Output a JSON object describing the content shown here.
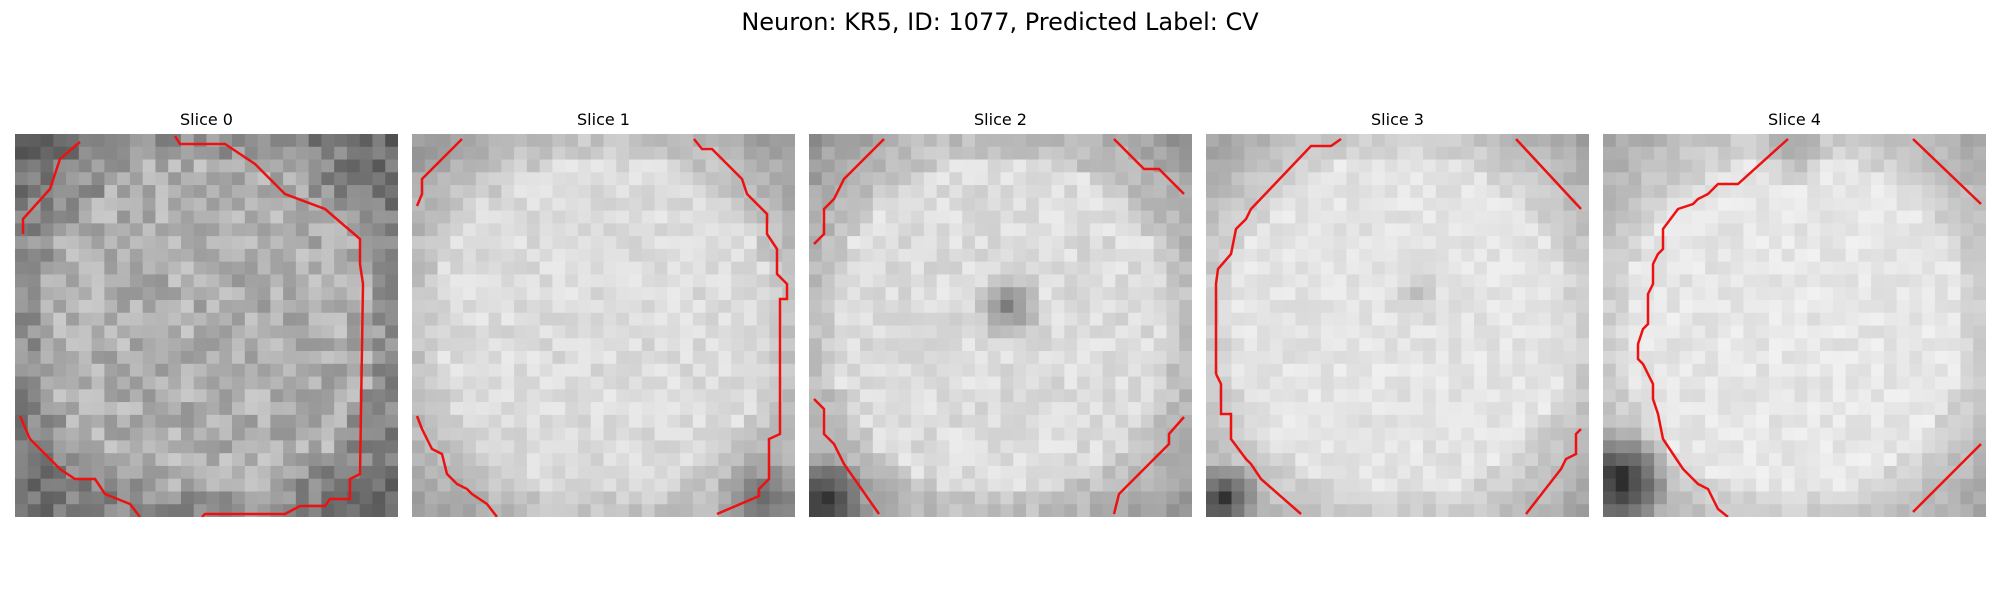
{
  "figure": {
    "title": "Neuron: KR5, ID: 1077, Predicted Label: CV"
  },
  "panels": [
    {
      "title": "Slice 0",
      "image": "grayscale-microscopy-slice",
      "contour_color": "#ee1111"
    },
    {
      "title": "Slice 1",
      "image": "grayscale-microscopy-slice",
      "contour_color": "#ee1111"
    },
    {
      "title": "Slice 2",
      "image": "grayscale-microscopy-slice",
      "contour_color": "#ee1111"
    },
    {
      "title": "Slice 3",
      "image": "grayscale-microscopy-slice",
      "contour_color": "#ee1111"
    },
    {
      "title": "Slice 4",
      "image": "grayscale-microscopy-slice",
      "contour_color": "#ee1111"
    }
  ]
}
